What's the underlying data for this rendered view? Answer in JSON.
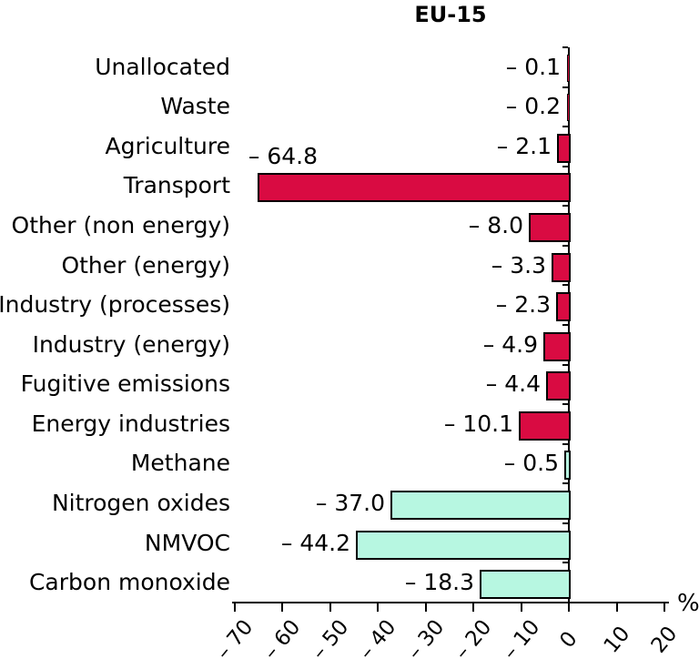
{
  "title": "EU-15",
  "axis": {
    "unit_label": "%",
    "tick_values": [
      -70,
      -60,
      -50,
      -40,
      -30,
      -20,
      -10,
      0,
      10,
      20
    ],
    "tick_labels": [
      "– 70",
      "– 60",
      "– 50",
      "– 40",
      "– 30",
      "– 20",
      "– 10",
      "0",
      "10",
      "20"
    ]
  },
  "chart_data": {
    "type": "bar",
    "orientation": "horizontal",
    "title": "EU-15",
    "xlabel": "%",
    "xlim": [
      -70,
      20
    ],
    "grid": false,
    "legend": "none",
    "colors": {
      "sector": "#d90b42",
      "pollutant": "#b7f7e1",
      "bar_border": "#000000"
    },
    "categories": [
      "Unallocated",
      "Waste",
      "Agriculture",
      "Transport",
      "Other (non energy)",
      "Other (energy)",
      "Industry (processes)",
      "Industry (energy)",
      "Fugitive emissions",
      "Energy industries",
      "Methane",
      "Nitrogen oxides",
      "NMVOC",
      "Carbon monoxide"
    ],
    "values": [
      -0.1,
      -0.2,
      -2.1,
      -64.8,
      -8.0,
      -3.3,
      -2.3,
      -4.9,
      -4.4,
      -10.1,
      -0.5,
      -37.0,
      -44.2,
      -18.3
    ],
    "items": [
      {
        "label": "Unallocated",
        "value": -0.1,
        "display": "– 0.1",
        "color_key": "sector",
        "value_label_position": "left"
      },
      {
        "label": "Waste",
        "value": -0.2,
        "display": "– 0.2",
        "color_key": "sector",
        "value_label_position": "left"
      },
      {
        "label": "Agriculture",
        "value": -2.1,
        "display": "– 2.1",
        "color_key": "sector",
        "value_label_position": "left"
      },
      {
        "label": "Transport",
        "value": -64.8,
        "display": "– 64.8",
        "color_key": "sector",
        "value_label_position": "above-left"
      },
      {
        "label": "Other (non energy)",
        "value": -8.0,
        "display": "– 8.0",
        "color_key": "sector",
        "value_label_position": "left"
      },
      {
        "label": "Other (energy)",
        "value": -3.3,
        "display": "– 3.3",
        "color_key": "sector",
        "value_label_position": "left"
      },
      {
        "label": "Industry (processes)",
        "value": -2.3,
        "display": "– 2.3",
        "color_key": "sector",
        "value_label_position": "left"
      },
      {
        "label": "Industry (energy)",
        "value": -4.9,
        "display": "– 4.9",
        "color_key": "sector",
        "value_label_position": "left"
      },
      {
        "label": "Fugitive emissions",
        "value": -4.4,
        "display": "– 4.4",
        "color_key": "sector",
        "value_label_position": "left"
      },
      {
        "label": "Energy industries",
        "value": -10.1,
        "display": "– 10.1",
        "color_key": "sector",
        "value_label_position": "left"
      },
      {
        "label": "Methane",
        "value": -0.5,
        "display": "– 0.5",
        "color_key": "pollutant",
        "value_label_position": "left"
      },
      {
        "label": "Nitrogen oxides",
        "value": -37.0,
        "display": "– 37.0",
        "color_key": "pollutant",
        "value_label_position": "left"
      },
      {
        "label": "NMVOC",
        "value": -44.2,
        "display": "– 44.2",
        "color_key": "pollutant",
        "value_label_position": "left"
      },
      {
        "label": "Carbon monoxide",
        "value": -18.3,
        "display": "– 18.3",
        "color_key": "pollutant",
        "value_label_position": "left"
      }
    ]
  }
}
